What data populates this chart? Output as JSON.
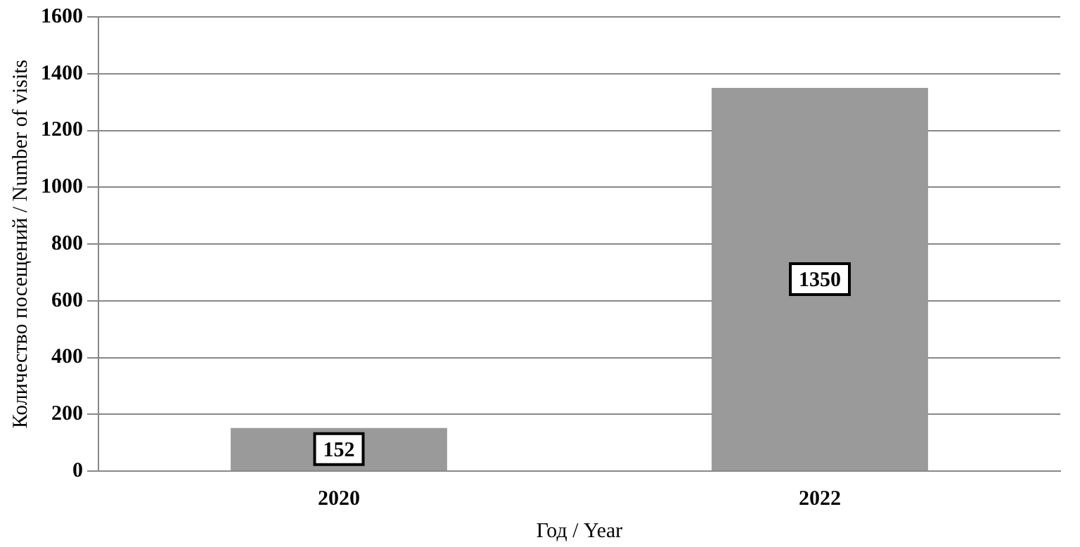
{
  "chart_data": {
    "type": "bar",
    "xlabel": "Год / Year",
    "ylabel": "Количество посещений / Number of visits",
    "categories": [
      "2020",
      "2022"
    ],
    "values": [
      152,
      1350
    ],
    "color": "#9a9a9a",
    "ylim": [
      0,
      1600
    ],
    "yticks": [
      0,
      200,
      400,
      600,
      800,
      1000,
      1200,
      1400,
      1600
    ],
    "grid": "y",
    "data_labels": true
  }
}
